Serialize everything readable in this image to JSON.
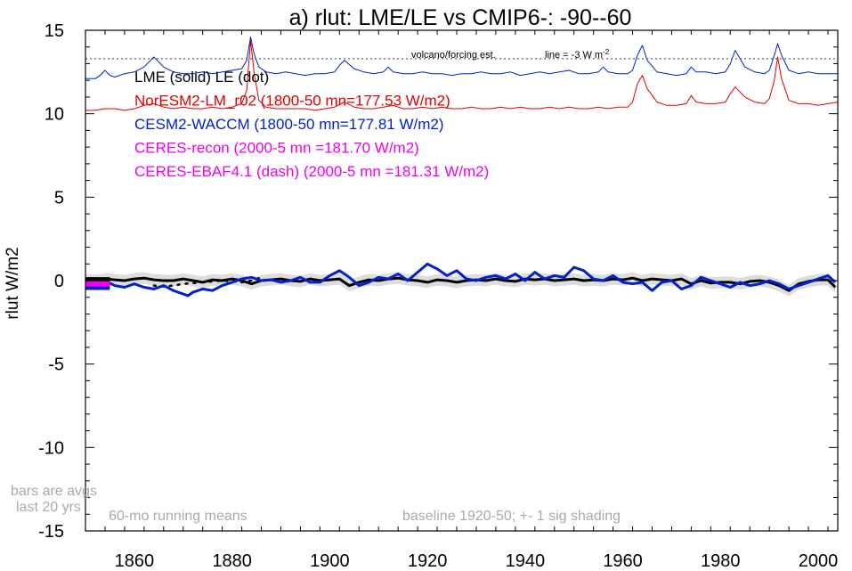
{
  "chart_data": {
    "type": "line",
    "title": "a) rlut: LME/LE vs CMIP6-: -90--60",
    "ylabel": "rlut W/m2",
    "xlabel": "",
    "xlim": [
      1850,
      2004
    ],
    "ylim": [
      -15,
      15
    ],
    "x_ticks": [
      1860,
      1880,
      1900,
      1920,
      1940,
      1960,
      1980,
      2000
    ],
    "y_ticks": [
      -15,
      -10,
      -5,
      0,
      5,
      10,
      15
    ],
    "grid": false,
    "legend": [
      {
        "label": "LME (solid)   LE (dot)",
        "color": "#000000"
      },
      {
        "label": "NorESM2-LM_r02 (1800-50 mn=177.53 W/m2)",
        "color": "#e00000"
      },
      {
        "label": "CESM2-WACCM (1800-50 mn=177.81 W/m2)",
        "color": "#0022cc"
      },
      {
        "label": "CERES-recon (2000-5 mn =181.70 W/m2)",
        "color": "#ee00ee"
      },
      {
        "label": "CERES-EBAF4.1 (dash) (2000-5 mn =181.31 W/m2)",
        "color": "#ee00ee"
      }
    ],
    "annotations": {
      "volcano_label": "volcano/forcing est.",
      "line_label": "line = -3 W m",
      "line_label_sup": "-2",
      "bars_note_1": "bars are avgs",
      "bars_note_2": "last 20 yrs",
      "running_mean_note": "60-mo running means",
      "baseline_note": "baseline 1920-50; +- 1 sig shading"
    },
    "reference_line_y": 13.3,
    "series": [
      {
        "name": "CESM2-WACCM forcing",
        "color": "#0022cc",
        "x": [
          1850,
          1852,
          1853,
          1854,
          1855,
          1856,
          1858,
          1860,
          1862,
          1864,
          1866,
          1868,
          1870,
          1872,
          1874,
          1876,
          1878,
          1880,
          1882,
          1883,
          1883.8,
          1884.5,
          1885.5,
          1887,
          1889,
          1891,
          1893,
          1895,
          1897,
          1899,
          1901,
          1902,
          1903,
          1905,
          1907,
          1909,
          1911,
          1912,
          1913,
          1915,
          1917,
          1919,
          1921,
          1923,
          1925,
          1927,
          1929,
          1931,
          1933,
          1935,
          1937,
          1939,
          1941,
          1943,
          1945,
          1947,
          1949,
          1951,
          1953,
          1955,
          1956,
          1957,
          1959,
          1961,
          1962,
          1963,
          1964,
          1965,
          1967,
          1969,
          1971,
          1973,
          1974,
          1975,
          1977,
          1979,
          1981,
          1982,
          1983,
          1985,
          1987,
          1989,
          1990,
          1991,
          1991.7,
          1992.5,
          1994,
          1996,
          1998,
          2000,
          2002,
          2004
        ],
        "y": [
          12.1,
          12.1,
          12.3,
          12.6,
          12.3,
          12.2,
          12.4,
          12.5,
          12.8,
          13.4,
          12.8,
          12.5,
          12.4,
          12.4,
          12.5,
          12.4,
          12.5,
          12.6,
          12.7,
          13.2,
          14.6,
          13.6,
          12.8,
          12.5,
          12.4,
          12.5,
          12.4,
          12.3,
          12.4,
          12.4,
          12.5,
          12.9,
          13.2,
          12.7,
          12.5,
          12.4,
          12.5,
          12.8,
          12.5,
          12.4,
          12.4,
          12.5,
          12.4,
          12.4,
          12.3,
          12.4,
          12.4,
          12.5,
          12.4,
          12.4,
          12.5,
          12.3,
          12.4,
          12.5,
          12.4,
          12.5,
          12.6,
          12.4,
          12.4,
          12.5,
          12.8,
          12.5,
          12.4,
          12.4,
          12.6,
          13.5,
          14.1,
          13.2,
          12.5,
          12.4,
          12.3,
          12.4,
          12.8,
          12.5,
          12.5,
          12.4,
          12.5,
          13.0,
          13.8,
          12.8,
          12.5,
          12.4,
          12.6,
          13.5,
          14.2,
          13.5,
          12.6,
          12.4,
          12.5,
          12.4,
          12.4,
          12.4
        ]
      },
      {
        "name": "NorESM2-LM forcing",
        "color": "#e00000",
        "x": [
          1850,
          1852,
          1854,
          1856,
          1858,
          1860,
          1862,
          1864,
          1866,
          1868,
          1870,
          1872,
          1874,
          1876,
          1878,
          1880,
          1882,
          1883,
          1883.8,
          1884.5,
          1885.5,
          1887,
          1889,
          1891,
          1893,
          1895,
          1897,
          1899,
          1901,
          1903,
          1905,
          1907,
          1909,
          1911,
          1913,
          1915,
          1917,
          1919,
          1921,
          1923,
          1925,
          1927,
          1929,
          1931,
          1933,
          1935,
          1937,
          1939,
          1941,
          1943,
          1945,
          1947,
          1949,
          1951,
          1953,
          1955,
          1957,
          1959,
          1961,
          1962,
          1963,
          1964,
          1965,
          1967,
          1969,
          1971,
          1973,
          1974,
          1975,
          1977,
          1979,
          1981,
          1982,
          1983,
          1985,
          1987,
          1989,
          1990,
          1991,
          1991.7,
          1992.5,
          1994,
          1996,
          1998,
          2000,
          2002,
          2004
        ],
        "y": [
          10.2,
          10.2,
          10.3,
          10.3,
          10.2,
          10.3,
          10.5,
          10.6,
          10.4,
          10.3,
          10.4,
          10.3,
          10.3,
          10.4,
          10.3,
          10.4,
          10.6,
          11.4,
          14.4,
          12.5,
          10.8,
          10.4,
          10.3,
          10.3,
          10.3,
          10.3,
          10.2,
          10.3,
          10.4,
          10.7,
          10.4,
          10.3,
          10.3,
          10.4,
          10.5,
          10.3,
          10.3,
          10.4,
          10.3,
          10.4,
          10.3,
          10.3,
          10.4,
          10.3,
          10.3,
          10.4,
          10.3,
          10.4,
          10.3,
          10.3,
          10.4,
          10.3,
          10.4,
          10.3,
          10.3,
          10.4,
          10.3,
          10.4,
          10.4,
          10.7,
          11.8,
          12.3,
          11.5,
          10.7,
          10.5,
          10.5,
          10.6,
          11.1,
          10.7,
          10.6,
          10.6,
          10.7,
          11.2,
          11.6,
          11.0,
          10.7,
          10.6,
          10.9,
          12.0,
          13.4,
          12.1,
          10.8,
          10.6,
          10.6,
          10.5,
          10.6,
          10.7
        ]
      },
      {
        "name": "LME",
        "color": "#000000",
        "x": [
          1850,
          1852,
          1854,
          1856,
          1858,
          1860,
          1862,
          1864,
          1866,
          1868,
          1870,
          1872,
          1874,
          1876,
          1878,
          1880,
          1882,
          1884,
          1886,
          1888,
          1890,
          1892,
          1894,
          1896,
          1898,
          1900,
          1902,
          1904,
          1906,
          1908,
          1910,
          1912,
          1914,
          1916,
          1918,
          1920,
          1922,
          1924,
          1926,
          1928,
          1930,
          1932,
          1934,
          1936,
          1938,
          1940,
          1942,
          1944,
          1946,
          1948,
          1950,
          1952,
          1954,
          1956,
          1958,
          1960,
          1962,
          1964,
          1966,
          1968,
          1970,
          1972,
          1974,
          1976,
          1978,
          1980,
          1982,
          1984,
          1986,
          1988,
          1990,
          1992,
          1994,
          1996,
          1998,
          2000,
          2002,
          2003.5
        ],
        "y": [
          0.05,
          0.0,
          0.1,
          0.05,
          0.0,
          0.1,
          0.15,
          0.05,
          0.0,
          0.0,
          0.1,
          0.0,
          -0.1,
          0.05,
          0.0,
          0.1,
          0.0,
          -0.2,
          0.0,
          0.05,
          0.1,
          0.0,
          -0.05,
          0.1,
          0.0,
          0.05,
          0.1,
          -0.3,
          -0.1,
          0.05,
          0.0,
          0.1,
          0.15,
          0.05,
          0.0,
          -0.1,
          0.05,
          0.0,
          -0.1,
          0.0,
          0.05,
          0.0,
          0.1,
          0.0,
          -0.05,
          0.1,
          0.05,
          0.1,
          0.0,
          0.05,
          0.1,
          0.0,
          0.05,
          0.0,
          0.1,
          0.05,
          0.15,
          0.0,
          0.1,
          0.05,
          0.0,
          0.1,
          -0.2,
          0.0,
          -0.15,
          -0.1,
          -0.1,
          -0.2,
          -0.05,
          0.0,
          -0.1,
          -0.3,
          -0.6,
          -0.2,
          -0.05,
          0.05,
          0.05,
          -0.4
        ]
      },
      {
        "name": "LE",
        "color": "#000000",
        "x": [
          1864,
          1866,
          1868,
          1870,
          1872,
          1874,
          1876,
          1878,
          1880,
          1882,
          1884,
          1886
        ],
        "y": [
          -0.3,
          -0.35,
          -0.3,
          -0.2,
          -0.15,
          -0.1,
          -0.05,
          0.0,
          -0.05,
          -0.1,
          0.0,
          0.2
        ]
      },
      {
        "name": "CESM2-WACCM",
        "color": "#0022cc",
        "x": [
          1850,
          1852,
          1854,
          1856,
          1858,
          1860,
          1862,
          1864,
          1866,
          1868,
          1870,
          1871,
          1872,
          1874,
          1876,
          1878,
          1880,
          1882,
          1884,
          1886,
          1888,
          1890,
          1892,
          1894,
          1896,
          1898,
          1900,
          1902,
          1904,
          1906,
          1908,
          1910,
          1912,
          1914,
          1916,
          1918,
          1920,
          1922,
          1924,
          1926,
          1928,
          1930,
          1932,
          1934,
          1936,
          1938,
          1940,
          1942,
          1944,
          1946,
          1948,
          1950,
          1952,
          1954,
          1956,
          1958,
          1960,
          1962,
          1964,
          1966,
          1968,
          1970,
          1972,
          1974,
          1976,
          1978,
          1980,
          1982,
          1984,
          1986,
          1988,
          1990,
          1992,
          1994,
          1996,
          1998,
          2000,
          2002,
          2003.5
        ],
        "y": [
          -0.1,
          -0.2,
          0.0,
          -0.3,
          -0.4,
          -0.2,
          -0.4,
          -0.5,
          -0.3,
          -0.6,
          -0.8,
          -0.9,
          -0.7,
          -0.5,
          -0.6,
          -0.3,
          -0.1,
          0.1,
          0.2,
          0.0,
          0.05,
          -0.1,
          0.0,
          0.2,
          -0.1,
          -0.1,
          0.3,
          0.6,
          0.2,
          -0.3,
          -0.1,
          0.2,
          0.1,
          0.4,
          0.0,
          0.5,
          1.0,
          0.7,
          0.3,
          0.6,
          0.1,
          0.0,
          0.2,
          0.3,
          0.1,
          0.4,
          0.0,
          0.5,
          0.1,
          0.3,
          0.2,
          0.8,
          0.6,
          0.1,
          0.0,
          0.3,
          -0.1,
          -0.2,
          -0.1,
          -0.6,
          -0.1,
          0.0,
          -0.5,
          -0.3,
          0.2,
          0.0,
          -0.2,
          -0.4,
          -0.1,
          -0.3,
          -0.2,
          0.0,
          -0.2,
          -0.5,
          -0.3,
          -0.1,
          0.1,
          0.3,
          -0.1
        ]
      }
    ],
    "last20yr_bars": [
      {
        "series": "NorESM2-LM",
        "color": "#e00000",
        "y": -0.05
      },
      {
        "series": "LME",
        "color": "#000000",
        "y": 0.05
      },
      {
        "series": "CESM2-WACCM",
        "color": "#0022cc",
        "y": -0.4
      },
      {
        "series": "CERES-recon",
        "color": "#ee00ee",
        "y": -0.2
      }
    ]
  }
}
